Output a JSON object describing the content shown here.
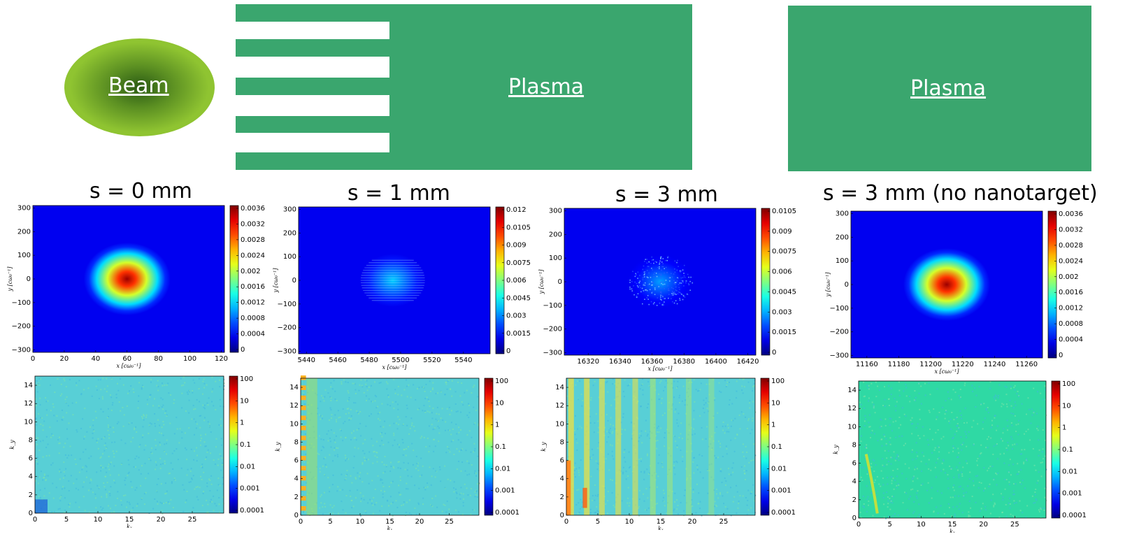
{
  "diagram": {
    "beam_label": "Beam",
    "plasma_label_1": "Plasma",
    "plasma_label_2": "Plasma",
    "colors": {
      "plasma": "#3aa66e",
      "beam_outer": "#8fc431",
      "beam_inner": "#2a5a14"
    }
  },
  "columns": [
    {
      "title": "s = 0 mm"
    },
    {
      "title": "s = 1 mm"
    },
    {
      "title": "s = 3 mm"
    },
    {
      "title": "s = 3 mm (no nanotarget)"
    }
  ],
  "chart_data": [
    {
      "type": "heatmap",
      "panel": "real-space-0",
      "xlabel": "x [cω₀⁻¹]",
      "ylabel": "y [cω₀⁻¹]",
      "xlim": [
        0,
        122
      ],
      "ylim": [
        -310,
        310
      ],
      "xticks": [
        "0",
        "20",
        "40",
        "60",
        "80",
        "100",
        "120"
      ],
      "yticks": [
        "300",
        "200",
        "100",
        "0",
        "−100",
        "−200",
        "−300"
      ],
      "colorbar_ticks": [
        "0.0036",
        "0.0032",
        "0.0028",
        "0.0024",
        "0.002",
        "0.0016",
        "0.0012",
        "0.0008",
        "0.0004",
        "0"
      ],
      "colorbar_range": [
        0,
        0.0037
      ],
      "blob": {
        "center_x": 60,
        "center_y": 0,
        "peak": 0.0036,
        "style": "smooth"
      }
    },
    {
      "type": "heatmap",
      "panel": "real-space-1",
      "xlabel": "x [cω₀⁻¹]",
      "ylabel": "y [cω₀⁻¹]",
      "xlim": [
        5435,
        5557
      ],
      "ylim": [
        -310,
        310
      ],
      "xticks": [
        "5440",
        "5460",
        "5480",
        "5500",
        "5520",
        "5540"
      ],
      "yticks": [
        "300",
        "200",
        "100",
        "0",
        "−100",
        "−200",
        "−300"
      ],
      "colorbar_ticks": [
        "0.012",
        "0.0105",
        "0.009",
        "0.0075",
        "0.006",
        "0.0045",
        "0.003",
        "0.0015",
        "0"
      ],
      "colorbar_range": [
        0,
        0.0122
      ],
      "blob": {
        "center_x": 5495,
        "center_y": 0,
        "peak": 0.004,
        "style": "striated"
      }
    },
    {
      "type": "heatmap",
      "panel": "real-space-3",
      "xlabel": "x [cω₀⁻¹]",
      "ylabel": "y [cω₀⁻¹]",
      "xlim": [
        16305,
        16425
      ],
      "ylim": [
        -310,
        310
      ],
      "xticks": [
        "16320",
        "16340",
        "16360",
        "16380",
        "16400",
        "16420"
      ],
      "yticks": [
        "300",
        "200",
        "100",
        "0",
        "−100",
        "−200",
        "−300"
      ],
      "colorbar_ticks": [
        "0.0105",
        "0.009",
        "0.0075",
        "0.006",
        "0.0045",
        "0.003",
        "0.0015",
        "0"
      ],
      "colorbar_range": [
        0,
        0.0106
      ],
      "blob": {
        "center_x": 16365,
        "center_y": 0,
        "peak": 0.003,
        "style": "speckled"
      }
    },
    {
      "type": "heatmap",
      "panel": "real-space-3-no-nanotarget",
      "xlabel": "x [cω₀⁻¹]",
      "ylabel": "y [cω₀⁻¹]",
      "xlim": [
        11150,
        11270
      ],
      "ylim": [
        -310,
        310
      ],
      "xticks": [
        "11160",
        "11180",
        "11200",
        "11220",
        "11240",
        "11260"
      ],
      "yticks": [
        "300",
        "200",
        "100",
        "0",
        "−100",
        "−200",
        "−300"
      ],
      "colorbar_ticks": [
        "0.0036",
        "0.0032",
        "0.0028",
        "0.0024",
        "0.002",
        "0.0016",
        "0.0012",
        "0.0008",
        "0.0004",
        "0"
      ],
      "colorbar_range": [
        0,
        0.0037
      ],
      "blob": {
        "center_x": 11210,
        "center_y": 0,
        "peak": 0.0036,
        "style": "smooth"
      }
    },
    {
      "type": "heatmap",
      "panel": "spectrum-0",
      "xlabel": "kₓ",
      "ylabel": "k_y",
      "xlim": [
        0,
        30
      ],
      "ylim": [
        0,
        15
      ],
      "xticks": [
        "0",
        "5",
        "10",
        "15",
        "20",
        "25"
      ],
      "yticks": [
        "14",
        "12",
        "10",
        "8",
        "6",
        "4",
        "2",
        "0"
      ],
      "colorbar_ticks": [
        "100",
        "10",
        "1",
        "0.1",
        "0.01",
        "0.001",
        "0.0001"
      ],
      "colorbar_scale": "log"
    },
    {
      "type": "heatmap",
      "panel": "spectrum-1",
      "xlabel": "kₓ",
      "ylabel": "k_y",
      "xlim": [
        0,
        30
      ],
      "ylim": [
        0,
        15
      ],
      "xticks": [
        "0",
        "5",
        "10",
        "15",
        "20",
        "25"
      ],
      "yticks": [
        "14",
        "12",
        "10",
        "8",
        "6",
        "4",
        "2",
        "0"
      ],
      "colorbar_ticks": [
        "100",
        "10",
        "1",
        "0.1",
        "0.01",
        "0.001",
        "0.0001"
      ],
      "colorbar_scale": "log"
    },
    {
      "type": "heatmap",
      "panel": "spectrum-3",
      "xlabel": "kₓ",
      "ylabel": "k_y",
      "xlim": [
        0,
        30
      ],
      "ylim": [
        0,
        15
      ],
      "xticks": [
        "0",
        "5",
        "10",
        "15",
        "20",
        "25"
      ],
      "yticks": [
        "14",
        "12",
        "10",
        "8",
        "6",
        "4",
        "2",
        "0"
      ],
      "colorbar_ticks": [
        "100",
        "10",
        "1",
        "0.1",
        "0.01",
        "0.001",
        "0.0001"
      ],
      "colorbar_scale": "log"
    },
    {
      "type": "heatmap",
      "panel": "spectrum-3-no-nanotarget",
      "xlabel": "kₓ",
      "ylabel": "k_y",
      "xlim": [
        0,
        30
      ],
      "ylim": [
        0,
        15
      ],
      "xticks": [
        "0",
        "5",
        "10",
        "15",
        "20",
        "25"
      ],
      "yticks": [
        "14",
        "12",
        "10",
        "8",
        "6",
        "4",
        "2",
        "0"
      ],
      "colorbar_ticks": [
        "100",
        "10",
        "1",
        "0.1",
        "0.01",
        "0.001",
        "0.0001"
      ],
      "colorbar_scale": "log"
    }
  ]
}
